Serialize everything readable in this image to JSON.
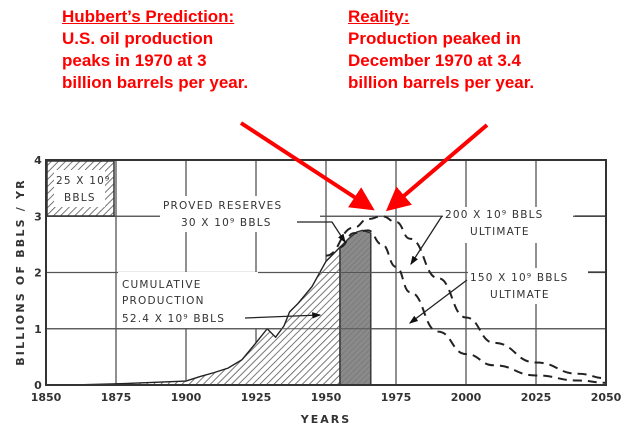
{
  "annotations": {
    "prediction": {
      "heading": "Hubbert’s Prediction:",
      "lines": [
        "U.S. oil production",
        "peaks in 1970 at 3",
        "billion barrels per year."
      ]
    },
    "reality": {
      "heading": "Reality:",
      "lines": [
        "Production peaked in",
        "December 1970 at 3.4",
        "billion barrels per year."
      ]
    },
    "color": "#ff0000"
  },
  "chart_labels": {
    "inset_box": [
      "25 X 10⁹",
      "BBLS"
    ],
    "proved_reserves": [
      "PROVED RESERVES",
      "30 X 10⁹ BBLS"
    ],
    "cumulative": [
      "CUMULATIVE",
      "PRODUCTION",
      "52.4 X 10⁹ BBLS"
    ],
    "ultimate_200": [
      "200 X 10⁹ BBLS",
      "ULTIMATE"
    ],
    "ultimate_150": [
      "150 X 10⁹ BBLS",
      "ULTIMATE"
    ]
  },
  "chart_data": {
    "type": "area",
    "title": "",
    "xlabel": "YEARS",
    "ylabel": "BILLIONS OF BBLS / YR",
    "xlim": [
      1850,
      2050
    ],
    "ylim": [
      0,
      4
    ],
    "x_ticks": [
      "1850",
      "1875",
      "1900",
      "1925",
      "1950",
      "1975",
      "2000",
      "2025",
      "2050"
    ],
    "y_ticks": [
      "0",
      "1",
      "2",
      "3",
      "4"
    ],
    "grid": true,
    "series": [
      {
        "name": "Cumulative production (52.4 x 10^9 BBLS)",
        "style": "hatched area",
        "x": [
          1860,
          1875,
          1890,
          1900,
          1905,
          1910,
          1915,
          1920,
          1925,
          1929,
          1932,
          1935,
          1937,
          1940,
          1945,
          1950,
          1953,
          1955
        ],
        "values": [
          0.0,
          0.02,
          0.05,
          0.07,
          0.15,
          0.22,
          0.3,
          0.45,
          0.75,
          1.0,
          0.85,
          1.05,
          1.3,
          1.45,
          1.75,
          2.2,
          2.35,
          2.45
        ]
      },
      {
        "name": "Proved reserves (30 x 10^9 BBLS)",
        "style": "dark shaded area",
        "x": [
          1955,
          1958,
          1961,
          1963,
          1966
        ],
        "values": [
          2.45,
          2.6,
          2.72,
          2.75,
          2.7
        ]
      },
      {
        "name": "200 x 10^9 BBLS ultimate",
        "style": "dashed line",
        "x": [
          1950,
          1960,
          1965,
          1970,
          1975,
          1980,
          1990,
          2000,
          2010,
          2025,
          2040,
          2050
        ],
        "values": [
          2.3,
          2.8,
          2.95,
          3.0,
          2.9,
          2.6,
          1.9,
          1.2,
          0.75,
          0.4,
          0.2,
          0.12
        ]
      },
      {
        "name": "150 x 10^9 BBLS ultimate",
        "style": "dashed line",
        "x": [
          1955,
          1960,
          1965,
          1970,
          1975,
          1980,
          1990,
          2000,
          2010,
          2025,
          2040,
          2050
        ],
        "values": [
          2.45,
          2.7,
          2.75,
          2.5,
          2.1,
          1.65,
          0.95,
          0.55,
          0.35,
          0.17,
          0.08,
          0.04
        ]
      }
    ],
    "annotations": [
      "25 X 10^9 BBLS (legend scale box)",
      "PROVED RESERVES 30 X 10^9 BBLS",
      "CUMULATIVE PRODUCTION 52.4 X 10^9 BBLS",
      "200 X 10^9 BBLS ULTIMATE",
      "150 X 10^9 BBLS ULTIMATE",
      "Hubbert's Prediction: U.S. oil production peaks in 1970 at 3 billion barrels per year.",
      "Reality: Production peaked in December 1970 at 3.4 billion barrels per year."
    ]
  }
}
